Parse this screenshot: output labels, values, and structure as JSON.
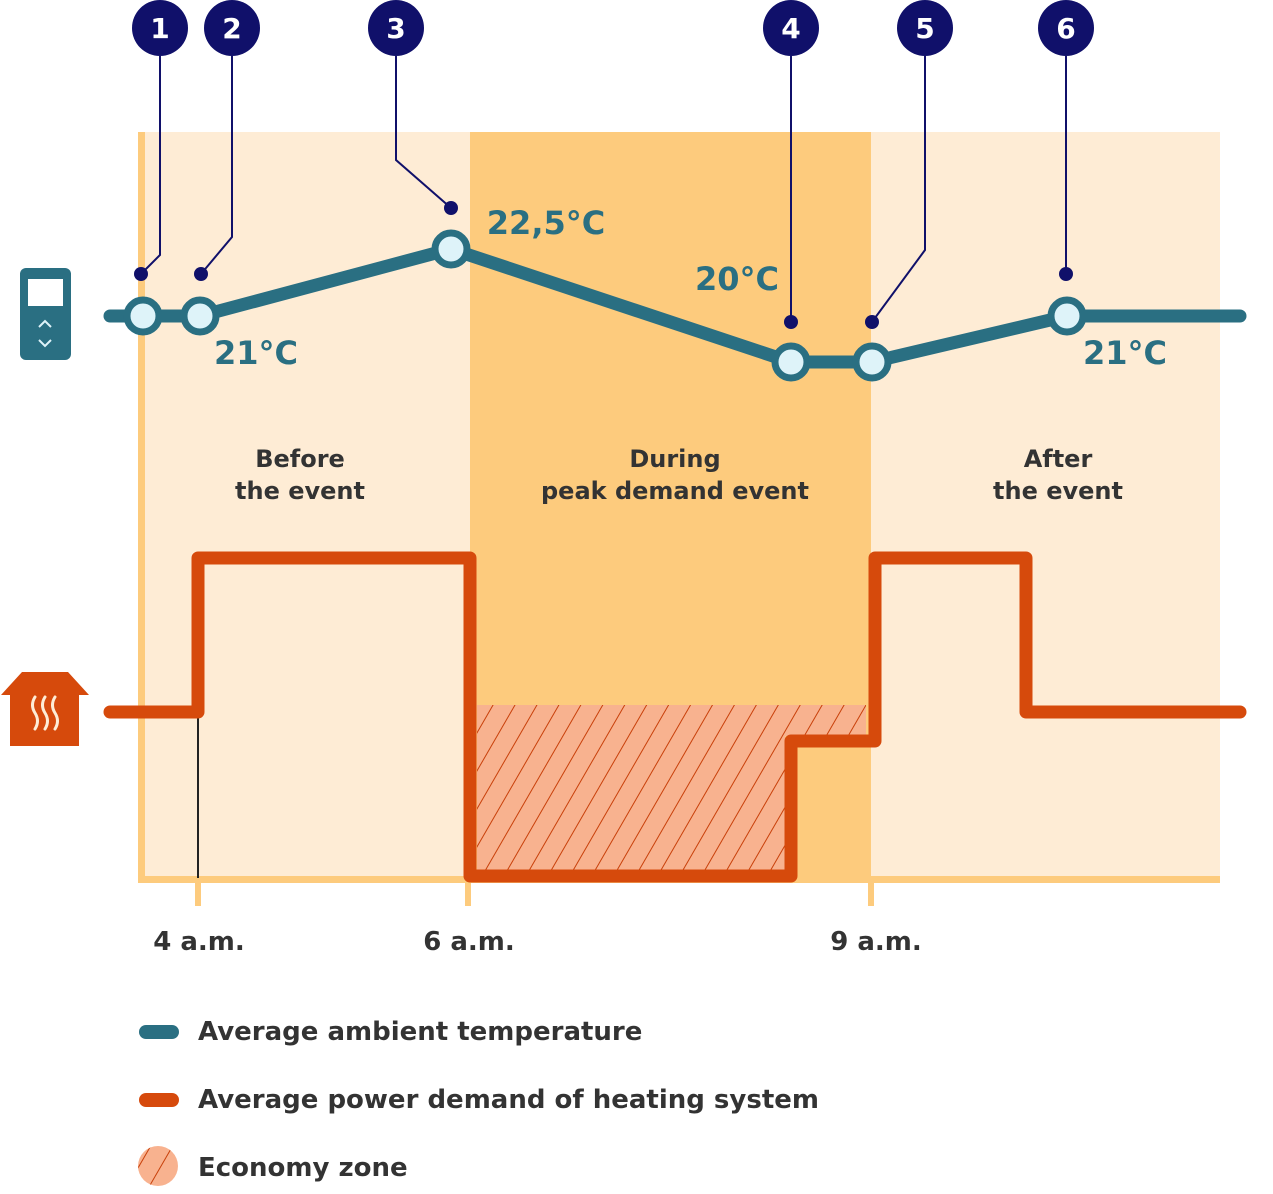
{
  "colors": {
    "temperature": "#2a6f82",
    "power": "#d64a0c",
    "marker": "#10106a",
    "before_after_bg": "#feecd5",
    "during_bg": "#fdcb7d",
    "economy": "#f8b28f",
    "point_fill": "#def3f9"
  },
  "icons": {
    "temperature_axis": "thermostat-icon",
    "power_axis": "house-heating-icon"
  },
  "markers": [
    "1",
    "2",
    "3",
    "4",
    "5",
    "6"
  ],
  "temperature_labels": [
    "21°C",
    "22,5°C",
    "20°C",
    "21°C"
  ],
  "periods": [
    {
      "line1": "Before",
      "line2": "the event"
    },
    {
      "line1": "During",
      "line2": "peak demand event"
    },
    {
      "line1": "After",
      "line2": "the event"
    }
  ],
  "time_labels": [
    "4 a.m.",
    "6 a.m.",
    "9 a.m."
  ],
  "legend": [
    {
      "label": "Average ambient temperature",
      "style": "line",
      "color": "#2a6f82"
    },
    {
      "label": "Average power demand of heating system",
      "style": "line",
      "color": "#d64a0c"
    },
    {
      "label": "Economy zone",
      "style": "hatch",
      "color": "#f8b28f"
    }
  ]
}
